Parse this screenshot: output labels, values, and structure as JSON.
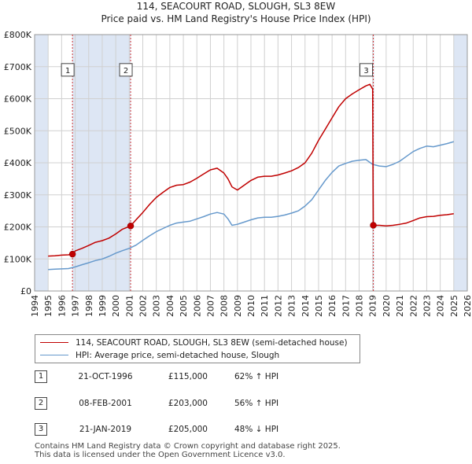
{
  "title_line1": "114, SEACOURT ROAD, SLOUGH, SL3 8EW",
  "title_line2": "Price paid vs. HM Land Registry's House Price Index (HPI)",
  "colors": {
    "property": "#c00000",
    "hpi": "#6699cc",
    "shade": "#dde6f4",
    "grid": "#d0d0d0",
    "vline": "#cc3333"
  },
  "legend": {
    "property_label": "114, SEACOURT ROAD, SLOUGH, SL3 8EW (semi-detached house)",
    "hpi_label": "HPI: Average price, semi-detached house, Slough"
  },
  "sales": [
    {
      "num": "1",
      "date": "21-OCT-1996",
      "price": "£115,000",
      "hpi": "62% ↑ HPI"
    },
    {
      "num": "2",
      "date": "08-FEB-2001",
      "price": "£203,000",
      "hpi": "56% ↑ HPI"
    },
    {
      "num": "3",
      "date": "21-JAN-2019",
      "price": "£205,000",
      "hpi": "48% ↓ HPI"
    }
  ],
  "footer_line1": "Contains HM Land Registry data © Crown copyright and database right 2025.",
  "footer_line2": "This data is licensed under the Open Government Licence v3.0.",
  "chart_data": {
    "type": "line",
    "xlim": [
      1994,
      2026
    ],
    "ylim": [
      0,
      800000
    ],
    "y_ticks": [
      0,
      100000,
      200000,
      300000,
      400000,
      500000,
      600000,
      700000,
      800000
    ],
    "y_tick_labels": [
      "£0",
      "£100K",
      "£200K",
      "£300K",
      "£400K",
      "£500K",
      "£600K",
      "£700K",
      "£800K"
    ],
    "x_ticks": [
      1994,
      1995,
      1996,
      1997,
      1998,
      1999,
      2000,
      2001,
      2002,
      2003,
      2004,
      2005,
      2006,
      2007,
      2008,
      2009,
      2010,
      2011,
      2012,
      2013,
      2014,
      2015,
      2016,
      2017,
      2018,
      2019,
      2020,
      2021,
      2022,
      2023,
      2024,
      2025,
      2026
    ],
    "shaded_ranges": [
      [
        1994,
        1995
      ],
      [
        1996.8,
        2001.1
      ],
      [
        2019.05,
        2019.1
      ],
      [
        2025,
        2026
      ]
    ],
    "sale_markers": [
      {
        "label": "1",
        "x": 1996.8,
        "y": 115000
      },
      {
        "label": "2",
        "x": 2001.1,
        "y": 203000
      },
      {
        "label": "3",
        "x": 2019.05,
        "y": 205000
      }
    ],
    "series": [
      {
        "name": "114, SEACOURT ROAD, SLOUGH, SL3 8EW (semi-detached house)",
        "x": [
          1995.0,
          1995.5,
          1996.0,
          1996.5,
          1996.8,
          1997.0,
          1997.5,
          1998.0,
          1998.5,
          1999.0,
          1999.5,
          2000.0,
          2000.5,
          2001.1,
          2001.5,
          2002.0,
          2002.5,
          2003.0,
          2003.5,
          2004.0,
          2004.5,
          2005.0,
          2005.5,
          2006.0,
          2006.5,
          2007.0,
          2007.5,
          2008.0,
          2008.3,
          2008.6,
          2009.0,
          2009.5,
          2010.0,
          2010.5,
          2011.0,
          2011.5,
          2012.0,
          2012.5,
          2013.0,
          2013.5,
          2014.0,
          2014.5,
          2015.0,
          2015.5,
          2016.0,
          2016.5,
          2017.0,
          2017.5,
          2018.0,
          2018.5,
          2018.8,
          2019.0,
          2019.05,
          2019.5,
          2020.0,
          2020.5,
          2021.0,
          2021.5,
          2022.0,
          2022.5,
          2023.0,
          2023.5,
          2024.0,
          2024.5,
          2025.0
        ],
        "values": [
          109000,
          110000,
          112000,
          113000,
          115000,
          125000,
          133000,
          142000,
          152000,
          157000,
          165000,
          178000,
          193000,
          203000,
          222000,
          245000,
          270000,
          292000,
          308000,
          323000,
          330000,
          332000,
          340000,
          352000,
          365000,
          378000,
          383000,
          368000,
          350000,
          325000,
          315000,
          330000,
          345000,
          355000,
          358000,
          358000,
          362000,
          368000,
          375000,
          385000,
          400000,
          430000,
          470000,
          505000,
          540000,
          575000,
          600000,
          615000,
          628000,
          640000,
          645000,
          630000,
          205000,
          205000,
          203000,
          205000,
          208000,
          212000,
          220000,
          228000,
          232000,
          233000,
          236000,
          238000,
          241000
        ]
      },
      {
        "name": "HPI: Average price, semi-detached house, Slough",
        "x": [
          1995.0,
          1995.5,
          1996.0,
          1996.5,
          1997.0,
          1997.5,
          1998.0,
          1998.5,
          1999.0,
          1999.5,
          2000.0,
          2000.5,
          2001.0,
          2001.5,
          2002.0,
          2002.5,
          2003.0,
          2003.5,
          2004.0,
          2004.5,
          2005.0,
          2005.5,
          2006.0,
          2006.5,
          2007.0,
          2007.5,
          2008.0,
          2008.3,
          2008.6,
          2009.0,
          2009.5,
          2010.0,
          2010.5,
          2011.0,
          2011.5,
          2012.0,
          2012.5,
          2013.0,
          2013.5,
          2014.0,
          2014.5,
          2015.0,
          2015.5,
          2016.0,
          2016.5,
          2017.0,
          2017.5,
          2018.0,
          2018.5,
          2019.0,
          2019.5,
          2020.0,
          2020.5,
          2021.0,
          2021.5,
          2022.0,
          2022.5,
          2023.0,
          2023.5,
          2024.0,
          2024.5,
          2025.0
        ],
        "values": [
          67000,
          68000,
          69000,
          70000,
          75000,
          82000,
          88000,
          95000,
          100000,
          108000,
          118000,
          126000,
          133000,
          143000,
          158000,
          172000,
          185000,
          195000,
          205000,
          212000,
          215000,
          218000,
          225000,
          232000,
          240000,
          245000,
          240000,
          225000,
          205000,
          208000,
          215000,
          222000,
          228000,
          230000,
          230000,
          233000,
          237000,
          243000,
          250000,
          265000,
          285000,
          315000,
          345000,
          370000,
          390000,
          398000,
          405000,
          408000,
          410000,
          395000,
          390000,
          388000,
          395000,
          405000,
          420000,
          435000,
          445000,
          452000,
          450000,
          455000,
          460000,
          466000
        ]
      }
    ]
  }
}
